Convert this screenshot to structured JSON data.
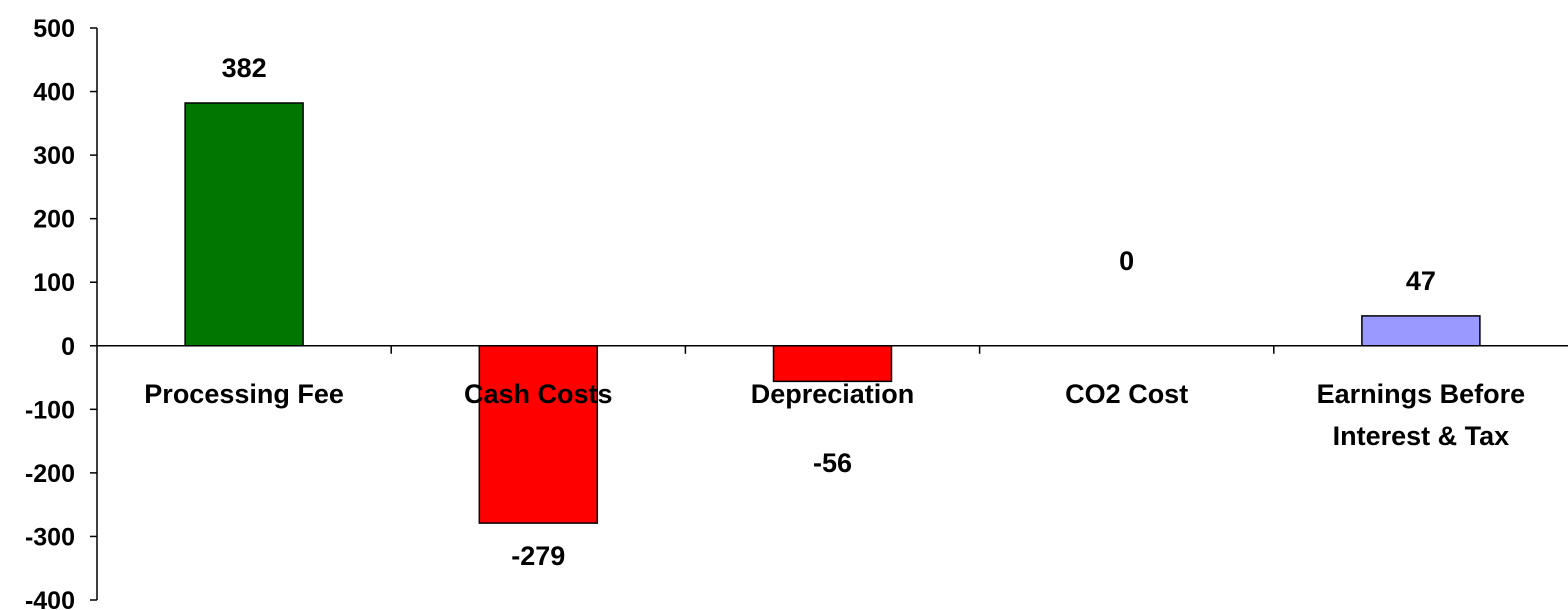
{
  "chart_data": {
    "type": "bar",
    "categories": [
      [
        "Processing Fee"
      ],
      [
        "Cash Costs"
      ],
      [
        "Depreciation"
      ],
      [
        "CO2 Cost"
      ],
      [
        "Earnings Before",
        "Interest & Tax"
      ]
    ],
    "values": [
      382,
      -279,
      -56,
      0,
      47
    ],
    "data_labels": [
      "382",
      "-279",
      "-56",
      "0",
      "47"
    ],
    "bar_colors": [
      "#007700",
      "#ff0000",
      "#ff0000",
      "#ff0000",
      "#9999ff"
    ],
    "bar_border_color": "#000000",
    "ylim": [
      -400,
      500
    ],
    "yticks": [
      500,
      400,
      300,
      200,
      100,
      0,
      -100,
      -200,
      -300,
      -400
    ],
    "title": "",
    "xlabel": "",
    "ylabel": "",
    "grid": false,
    "legend": "none"
  }
}
